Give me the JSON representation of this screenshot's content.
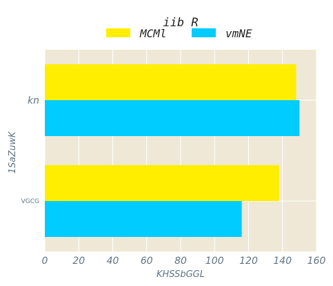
{
  "chart_data": {
    "type": "bar",
    "orientation": "horizontal",
    "title": "iib R",
    "xlabel": "KHSSbGGL",
    "ylabel": "1SaZuwK",
    "categories": [
      "kn",
      "VGCG"
    ],
    "series": [
      {
        "name": "MCMl",
        "values": [
          148,
          138
        ]
      },
      {
        "name": "vmNE",
        "values": [
          150,
          116
        ]
      }
    ],
    "xlim": [
      0,
      160
    ],
    "xticks": [
      "0",
      "20",
      "40",
      "60",
      "80",
      "100",
      "120",
      "140",
      "160"
    ],
    "grid": true,
    "legend": "top-center",
    "colors": {
      "plot_background": "#efe8d6",
      "grid": "#ffffff",
      "series": [
        "#ffee00",
        "#00ccff"
      ]
    }
  }
}
